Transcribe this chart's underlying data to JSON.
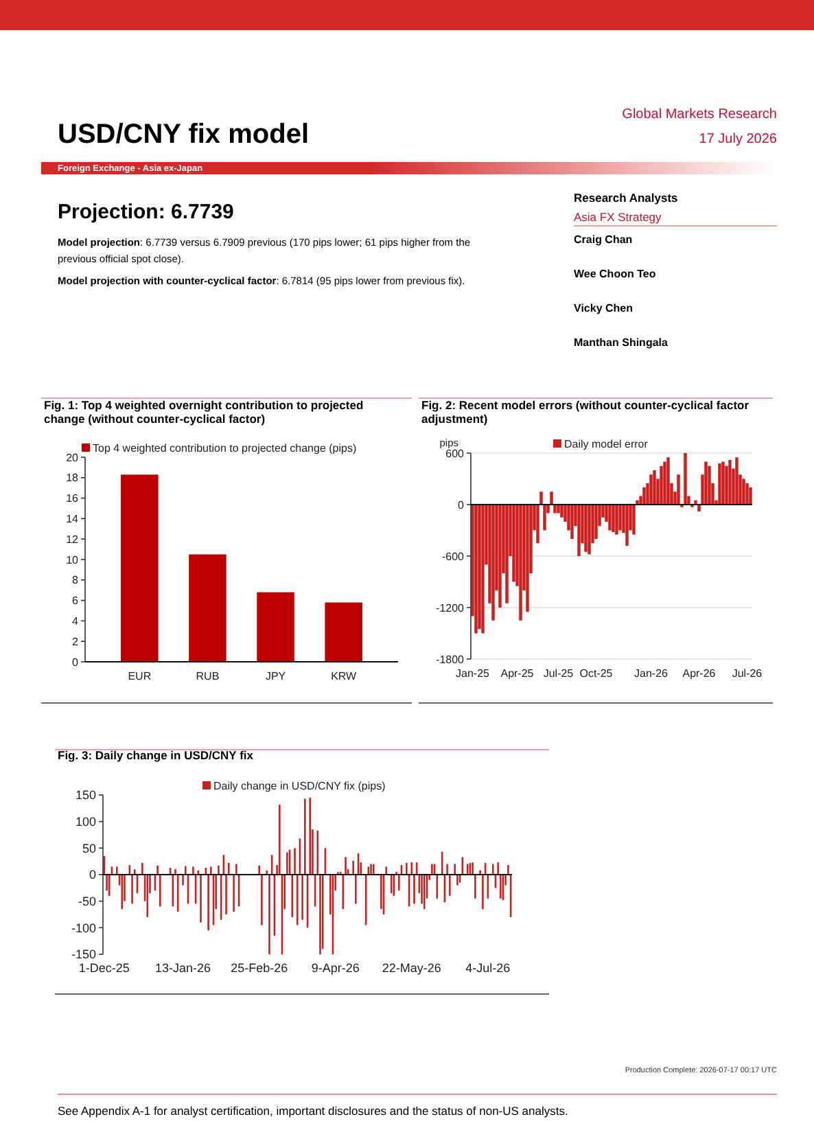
{
  "chart_data": [
    {
      "type": "other",
      "title": "USD/CNY fix model",
      "annotations": [
        "Global Markets Research",
        "17 July 2026",
        "Foreign Exchange - Asia ex-Japan",
        "Projection: 6.7739",
        "Model projection: 6.7739 versus 6.7909 previous (170 pips lower; 61 pips higher from the previous official spot close).",
        "Model projection with counter-cyclical factor: 6.7814 (95 pips lower from previous fix).",
        "Research Analysts",
        "Asia FX Strategy",
        "Craig Chan",
        "Wee Choon Teo",
        "Vicky Chen",
        "Manthan Shingala"
      ]
    },
    {
      "type": "bar",
      "title": "Fig. 1: Top 4 weighted overnight contribution to projected change (without counter-cyclical factor)",
      "categories": [
        "EUR",
        "RUB",
        "JPY",
        "KRW"
      ],
      "series": [
        {
          "name": "Top 4 weighted contribution to projected change (pips)",
          "color": "#c00000",
          "values": [
            18.3,
            10.5,
            6.8,
            5.8
          ]
        }
      ],
      "ylim": [
        0,
        20
      ],
      "yticks": [
        0,
        2,
        4,
        6,
        8,
        10,
        12,
        14,
        16,
        18,
        20
      ],
      "legend": "top"
    },
    {
      "type": "bar",
      "title": "Fig. 2: Recent model errors (without counter-cyclical factor adjustment)",
      "ylabel": "pips",
      "categories": [
        "Jan-25",
        null,
        null,
        null,
        null,
        null,
        null,
        null,
        null,
        null,
        null,
        null,
        null,
        "Apr-25",
        null,
        null,
        null,
        null,
        null,
        null,
        null,
        null,
        null,
        null,
        null,
        "Jul-25",
        null,
        null,
        null,
        null,
        null,
        null,
        null,
        null,
        null,
        null,
        "Oct-25",
        null,
        null,
        null,
        null,
        null,
        null,
        null,
        null,
        null,
        null,
        null,
        null,
        null,
        null,
        null,
        "Jan-26",
        null,
        null,
        null,
        null,
        null,
        null,
        null,
        null,
        null,
        null,
        null,
        null,
        null,
        "Apr-26",
        null,
        null,
        null,
        null,
        null,
        null,
        null,
        null,
        null,
        null,
        null,
        null,
        null,
        "Jul-26",
        null
      ],
      "series": [
        {
          "name": "Daily model error",
          "color": "#cc2020",
          "values": [
            -1300,
            -1500,
            -1450,
            -1500,
            -700,
            -1150,
            -1350,
            -1000,
            -1200,
            -800,
            -1150,
            -600,
            -900,
            -950,
            -1350,
            -1000,
            -1250,
            -800,
            -300,
            -450,
            150,
            -300,
            -100,
            150,
            -100,
            -100,
            -150,
            -200,
            -300,
            -400,
            -250,
            -600,
            -450,
            -550,
            -580,
            -450,
            -400,
            -250,
            -150,
            -200,
            -300,
            -320,
            -350,
            -300,
            -330,
            -480,
            -300,
            -350,
            50,
            100,
            200,
            250,
            350,
            400,
            300,
            450,
            500,
            550,
            250,
            150,
            350,
            -30,
            600,
            100,
            -30,
            50,
            -80,
            350,
            500,
            450,
            250,
            50,
            480,
            500,
            450,
            520,
            420,
            550,
            350,
            300,
            250,
            200
          ]
        }
      ],
      "ylim": [
        -1800,
        600
      ],
      "yticks": [
        -1800,
        -1200,
        -600,
        0,
        600
      ],
      "grid": "y",
      "legend": "top"
    },
    {
      "type": "bar",
      "title": "Fig. 3: Daily change in USD/CNY fix",
      "categories": [
        "1-Dec-25",
        null,
        null,
        null,
        null,
        null,
        null,
        null,
        null,
        null,
        null,
        null,
        null,
        null,
        null,
        null,
        null,
        null,
        null,
        null,
        null,
        null,
        null,
        null,
        null,
        null,
        null,
        null,
        null,
        null,
        null,
        "13-Jan-26",
        null,
        null,
        null,
        null,
        null,
        null,
        null,
        null,
        null,
        null,
        null,
        null,
        null,
        null,
        null,
        null,
        null,
        null,
        null,
        null,
        null,
        null,
        null,
        null,
        null,
        null,
        null,
        null,
        null,
        "25-Feb-26",
        null,
        null,
        null,
        null,
        null,
        null,
        null,
        null,
        null,
        null,
        null,
        null,
        null,
        null,
        null,
        null,
        null,
        null,
        null,
        null,
        null,
        null,
        null,
        null,
        null,
        null,
        null,
        null,
        null,
        "9-Apr-26",
        null,
        null,
        null,
        null,
        null,
        null,
        null,
        null,
        null,
        null,
        null,
        null,
        null,
        null,
        null,
        null,
        null,
        null,
        null,
        null,
        null,
        null,
        null,
        null,
        null,
        null,
        null,
        null,
        null,
        "22-May-26",
        null,
        null,
        null,
        null,
        null,
        null,
        null,
        null,
        null,
        null,
        null,
        null,
        null,
        null,
        null,
        null,
        null,
        null,
        null,
        null,
        null,
        null,
        null,
        null,
        null,
        null,
        null,
        null,
        null,
        "4-Jul-26",
        null,
        null,
        null,
        null,
        null,
        null,
        null,
        null,
        null
      ],
      "series": [
        {
          "name": "Daily change in USD/CNY fix (pips)",
          "color": "#cc2020",
          "values": [
            35,
            -30,
            -40,
            15,
            null,
            15,
            -20,
            -65,
            -50,
            null,
            18,
            -55,
            10,
            -35,
            null,
            22,
            -50,
            -80,
            -35,
            null,
            -30,
            17,
            -60,
            null,
            null,
            null,
            13,
            -60,
            10,
            -70,
            null,
            -20,
            16,
            -55,
            null,
            15,
            -55,
            8,
            -90,
            null,
            13,
            -105,
            15,
            -95,
            -65,
            17,
            -85,
            37,
            -75,
            22,
            null,
            -70,
            20,
            -60,
            null,
            null,
            null,
            null,
            null,
            null,
            null,
            17,
            -95,
            null,
            8,
            -150,
            37,
            -115,
            18,
            132,
            -150,
            -65,
            42,
            47,
            -80,
            50,
            -95,
            68,
            -85,
            143,
            -100,
            145,
            85,
            -60,
            83,
            -150,
            -140,
            50,
            null,
            -75,
            -150,
            -30,
            5,
            5,
            -65,
            33,
            10,
            null,
            26,
            -55,
            40,
            23,
            null,
            -95,
            15,
            20,
            20,
            null,
            null,
            -65,
            -75,
            15,
            null,
            -35,
            -40,
            5,
            -30,
            18,
            null,
            22,
            -60,
            23,
            -55,
            23,
            -35,
            -55,
            -65,
            -45,
            -10,
            20,
            20,
            -45,
            null,
            43,
            -52,
            20,
            -40,
            null,
            20,
            -20,
            -15,
            33,
            null,
            20,
            22,
            23,
            -45,
            null,
            8,
            -65,
            22,
            -45,
            null,
            20,
            -25,
            23,
            -45,
            -48,
            -20,
            18,
            -80
          ]
        }
      ],
      "ylim": [
        -150,
        150
      ],
      "yticks": [
        -150,
        -100,
        -50,
        0,
        50,
        100,
        150
      ],
      "legend": "top"
    },
    {
      "type": "other",
      "annotations": [
        "Production Complete: 2026-07-17 00:17 UTC",
        "See Appendix A-1 for analyst certification, important disclosures and the status of non-US analysts."
      ]
    }
  ]
}
